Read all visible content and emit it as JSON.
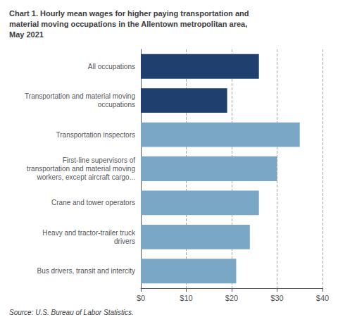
{
  "chart_data": {
    "type": "bar",
    "orientation": "horizontal",
    "title": "Chart 1. Hourly mean wages for higher paying transportation and\nmaterial moving occupations in the Allentown metropolitan area,\nMay 2021",
    "annotations": [
      "Source: U.S. Bureau of Labor Statistics."
    ],
    "categories": [
      "Bus drivers, transit and intercity",
      "Heavy and tractor-trailer truck\ndrivers",
      "Crane and tower operators",
      "First-line supervisors of\ntransportation and material moving\nworkers, except aircraft cargo...",
      "Transportation inspectors",
      "Transportation and material moving\noccupations",
      "All occupations"
    ],
    "values": [
      21.0,
      24.0,
      26.0,
      30.0,
      35.0,
      19.0,
      26.0
    ],
    "colors": [
      "#7ba7c7",
      "#7ba7c7",
      "#7ba7c7",
      "#7ba7c7",
      "#7ba7c7",
      "#1f3f6e",
      "#1f3f6e"
    ],
    "xlim": [
      0,
      40
    ],
    "xticks": [
      {
        "value": 0,
        "label": "$0"
      },
      {
        "value": 10,
        "label": "$10"
      },
      {
        "value": 20,
        "label": "$20"
      },
      {
        "value": 30,
        "label": "$30"
      },
      {
        "value": 40,
        "label": "$40"
      }
    ],
    "grid": true
  }
}
